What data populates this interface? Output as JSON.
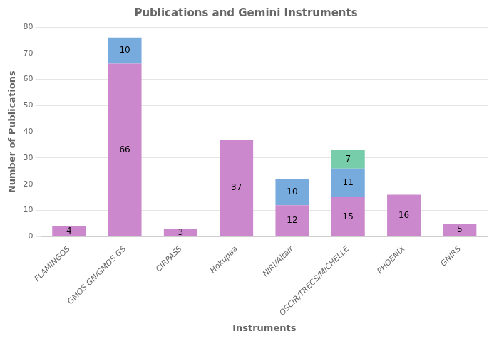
{
  "chart_data": {
    "type": "bar",
    "title": "Publications and Gemini Instruments",
    "xlabel": "Instruments",
    "ylabel": "Number of Publications",
    "categories": [
      "FLAMINGOS",
      "GMOS GN/GMOS GS",
      "CIRPASS",
      "Hokupaa",
      "NIRI/Altair",
      "OSCIR/TRECS/MICHELLE",
      "PHOENIX",
      "GNIRS"
    ],
    "series": [
      {
        "color": "#CC88CC",
        "values": [
          4,
          66,
          3,
          37,
          12,
          15,
          16,
          5
        ]
      },
      {
        "color": "#77AADD",
        "values": [
          0,
          10,
          0,
          0,
          10,
          11,
          0,
          0
        ]
      },
      {
        "color": "#77CCAA",
        "values": [
          0,
          0,
          0,
          0,
          0,
          7,
          0,
          0
        ]
      }
    ],
    "stacked": true,
    "data_labels": true,
    "ylim": [
      0,
      80
    ],
    "yticks": [
      0,
      10,
      20,
      30,
      40,
      50,
      60,
      70,
      80
    ],
    "grid": true
  }
}
